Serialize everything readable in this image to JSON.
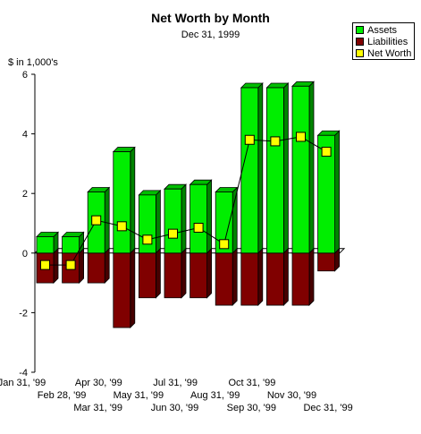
{
  "chart_data": {
    "type": "bar",
    "title": "Net Worth by Month",
    "subtitle": "Dec 31, 1999",
    "ylabel": "$ in 1,000's",
    "ylim": [
      -4,
      6
    ],
    "yticks": [
      -4,
      -2,
      0,
      2,
      4,
      6
    ],
    "grid": false,
    "legend_position": "top-right",
    "categories": [
      "Jan 31, '99",
      "Feb 28, '99",
      "Mar 31, '99",
      "Apr 30, '99",
      "May 31, '99",
      "Jun 30, '99",
      "Jul 31, '99",
      "Aug 31, '99",
      "Sep 30, '99",
      "Oct 31, '99",
      "Nov 30, '99",
      "Dec 31, '99"
    ],
    "series": [
      {
        "name": "Assets",
        "type": "bar",
        "color": "#00ee00",
        "values": [
          0.55,
          0.55,
          2.05,
          3.4,
          1.95,
          2.15,
          2.3,
          2.05,
          5.55,
          5.55,
          5.6,
          3.95
        ]
      },
      {
        "name": "Liabilities",
        "type": "bar",
        "color": "#800000",
        "values": [
          -1.0,
          -1.0,
          -1.0,
          -2.5,
          -1.5,
          -1.5,
          -1.5,
          -1.75,
          -1.75,
          -1.75,
          -1.75,
          -0.6
        ]
      },
      {
        "name": "Net Worth",
        "type": "line",
        "color": "#ffff00",
        "values": [
          -0.4,
          -0.4,
          1.1,
          0.9,
          0.45,
          0.65,
          0.85,
          0.3,
          3.8,
          3.75,
          3.9,
          3.4
        ]
      }
    ]
  }
}
